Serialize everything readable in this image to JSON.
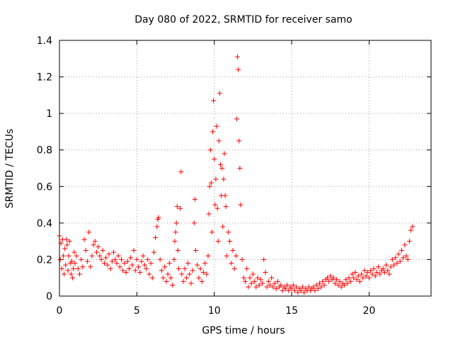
{
  "chart_data": {
    "type": "scatter",
    "title": "Day 080 of 2022, SRMTID for receiver samo",
    "xlabel": "GPS time / hours",
    "ylabel": "SRMTID / TECUs",
    "xlim": [
      0,
      24
    ],
    "ylim": [
      0,
      1.4
    ],
    "x_ticks": [
      0,
      5,
      10,
      15,
      20
    ],
    "x_tick_labels": [
      "0",
      "5",
      "10",
      "15",
      "20"
    ],
    "y_ticks": [
      0,
      0.2,
      0.4,
      0.6,
      0.8,
      1.0,
      1.2,
      1.4
    ],
    "y_tick_labels": [
      "0",
      "0.2",
      "0.4",
      "0.6",
      "0.8",
      "1",
      "1.2",
      "1.4"
    ],
    "grid": true,
    "marker": "+",
    "series": [
      {
        "name": "SRMTID",
        "color": "#ff0000",
        "points": [
          [
            0.0,
            0.33
          ],
          [
            0.05,
            0.2
          ],
          [
            0.1,
            0.29
          ],
          [
            0.15,
            0.15
          ],
          [
            0.2,
            0.31
          ],
          [
            0.25,
            0.22
          ],
          [
            0.3,
            0.12
          ],
          [
            0.35,
            0.26
          ],
          [
            0.4,
            0.17
          ],
          [
            0.45,
            0.31
          ],
          [
            0.5,
            0.28
          ],
          [
            0.55,
            0.14
          ],
          [
            0.6,
            0.22
          ],
          [
            0.65,
            0.3
          ],
          [
            0.7,
            0.18
          ],
          [
            0.75,
            0.12
          ],
          [
            0.8,
            0.19
          ],
          [
            0.85,
            0.1
          ],
          [
            0.9,
            0.15
          ],
          [
            0.95,
            0.24
          ],
          [
            1.0,
            0.18
          ],
          [
            1.1,
            0.22
          ],
          [
            1.2,
            0.15
          ],
          [
            1.3,
            0.12
          ],
          [
            1.4,
            0.2
          ],
          [
            1.5,
            0.16
          ],
          [
            1.6,
            0.31
          ],
          [
            1.7,
            0.25
          ],
          [
            1.8,
            0.19
          ],
          [
            1.9,
            0.35
          ],
          [
            2.0,
            0.16
          ],
          [
            2.1,
            0.22
          ],
          [
            2.2,
            0.28
          ],
          [
            2.3,
            0.3
          ],
          [
            2.4,
            0.24
          ],
          [
            2.5,
            0.27
          ],
          [
            2.6,
            0.22
          ],
          [
            2.7,
            0.2
          ],
          [
            2.8,
            0.25
          ],
          [
            2.9,
            0.18
          ],
          [
            3.0,
            0.21
          ],
          [
            3.1,
            0.17
          ],
          [
            3.2,
            0.23
          ],
          [
            3.3,
            0.15
          ],
          [
            3.4,
            0.19
          ],
          [
            3.5,
            0.24
          ],
          [
            3.6,
            0.2
          ],
          [
            3.7,
            0.18
          ],
          [
            3.8,
            0.22
          ],
          [
            3.9,
            0.16
          ],
          [
            4.0,
            0.2
          ],
          [
            4.1,
            0.14
          ],
          [
            4.2,
            0.18
          ],
          [
            4.3,
            0.13
          ],
          [
            4.4,
            0.19
          ],
          [
            4.5,
            0.15
          ],
          [
            4.6,
            0.21
          ],
          [
            4.7,
            0.17
          ],
          [
            4.8,
            0.25
          ],
          [
            4.9,
            0.14
          ],
          [
            5.0,
            0.2
          ],
          [
            5.1,
            0.16
          ],
          [
            5.2,
            0.13
          ],
          [
            5.3,
            0.19
          ],
          [
            5.4,
            0.22
          ],
          [
            5.5,
            0.17
          ],
          [
            5.6,
            0.15
          ],
          [
            5.7,
            0.2
          ],
          [
            5.8,
            0.12
          ],
          [
            5.9,
            0.18
          ],
          [
            6.0,
            0.1
          ],
          [
            6.1,
            0.24
          ],
          [
            6.2,
            0.32
          ],
          [
            6.3,
            0.38
          ],
          [
            6.35,
            0.42
          ],
          [
            6.4,
            0.43
          ],
          [
            6.5,
            0.2
          ],
          [
            6.6,
            0.14
          ],
          [
            6.7,
            0.1
          ],
          [
            6.8,
            0.16
          ],
          [
            6.9,
            0.08
          ],
          [
            7.0,
            0.12
          ],
          [
            7.1,
            0.18
          ],
          [
            7.2,
            0.1
          ],
          [
            7.3,
            0.06
          ],
          [
            7.4,
            0.2
          ],
          [
            7.45,
            0.3
          ],
          [
            7.5,
            0.35
          ],
          [
            7.55,
            0.4
          ],
          [
            7.6,
            0.49
          ],
          [
            7.65,
            0.25
          ],
          [
            7.7,
            0.15
          ],
          [
            7.8,
            0.48
          ],
          [
            7.85,
            0.68
          ],
          [
            7.9,
            0.12
          ],
          [
            8.0,
            0.08
          ],
          [
            8.1,
            0.15
          ],
          [
            8.2,
            0.1
          ],
          [
            8.3,
            0.18
          ],
          [
            8.4,
            0.12
          ],
          [
            8.5,
            0.07
          ],
          [
            8.6,
            0.14
          ],
          [
            8.7,
            0.4
          ],
          [
            8.75,
            0.53
          ],
          [
            8.8,
            0.25
          ],
          [
            8.9,
            0.17
          ],
          [
            9.0,
            0.1
          ],
          [
            9.1,
            0.15
          ],
          [
            9.2,
            0.08
          ],
          [
            9.3,
            0.13
          ],
          [
            9.4,
            0.18
          ],
          [
            9.5,
            0.12
          ],
          [
            9.6,
            0.22
          ],
          [
            9.65,
            0.45
          ],
          [
            9.7,
            0.6
          ],
          [
            9.75,
            0.8
          ],
          [
            9.8,
            0.62
          ],
          [
            9.85,
            0.35
          ],
          [
            9.9,
            0.9
          ],
          [
            9.95,
            1.07
          ],
          [
            10.0,
            0.75
          ],
          [
            10.05,
            0.5
          ],
          [
            10.1,
            0.64
          ],
          [
            10.15,
            0.93
          ],
          [
            10.2,
            0.48
          ],
          [
            10.25,
            0.3
          ],
          [
            10.3,
            0.85
          ],
          [
            10.35,
            1.11
          ],
          [
            10.4,
            0.72
          ],
          [
            10.45,
            0.55
          ],
          [
            10.5,
            0.7
          ],
          [
            10.55,
            0.38
          ],
          [
            10.6,
            0.64
          ],
          [
            10.65,
            0.78
          ],
          [
            10.7,
            0.55
          ],
          [
            10.75,
            0.49
          ],
          [
            10.8,
            0.22
          ],
          [
            10.9,
            0.35
          ],
          [
            11.0,
            0.3
          ],
          [
            11.1,
            0.18
          ],
          [
            11.2,
            0.25
          ],
          [
            11.3,
            0.15
          ],
          [
            11.4,
            0.22
          ],
          [
            11.45,
            0.97
          ],
          [
            11.5,
            1.31
          ],
          [
            11.55,
            1.24
          ],
          [
            11.6,
            0.85
          ],
          [
            11.65,
            0.7
          ],
          [
            11.7,
            0.5
          ],
          [
            11.8,
            0.2
          ],
          [
            11.9,
            0.1
          ],
          [
            12.0,
            0.08
          ],
          [
            12.1,
            0.15
          ],
          [
            12.2,
            0.05
          ],
          [
            12.3,
            0.1
          ],
          [
            12.4,
            0.07
          ],
          [
            12.5,
            0.12
          ],
          [
            12.6,
            0.08
          ],
          [
            12.7,
            0.05
          ],
          [
            12.8,
            0.1
          ],
          [
            12.9,
            0.06
          ],
          [
            13.0,
            0.09
          ],
          [
            13.1,
            0.07
          ],
          [
            13.2,
            0.2
          ],
          [
            13.3,
            0.13
          ],
          [
            13.4,
            0.05
          ],
          [
            13.5,
            0.08
          ],
          [
            13.6,
            0.06
          ],
          [
            13.7,
            0.1
          ],
          [
            13.8,
            0.05
          ],
          [
            13.9,
            0.07
          ],
          [
            14.0,
            0.04
          ],
          [
            14.1,
            0.08
          ],
          [
            14.2,
            0.05
          ],
          [
            14.3,
            0.06
          ],
          [
            14.4,
            0.03
          ],
          [
            14.5,
            0.05
          ],
          [
            14.6,
            0.04
          ],
          [
            14.7,
            0.06
          ],
          [
            14.8,
            0.03
          ],
          [
            14.9,
            0.05
          ],
          [
            15.0,
            0.04
          ],
          [
            15.1,
            0.06
          ],
          [
            15.2,
            0.03
          ],
          [
            15.3,
            0.05
          ],
          [
            15.4,
            0.02
          ],
          [
            15.5,
            0.04
          ],
          [
            15.6,
            0.03
          ],
          [
            15.7,
            0.05
          ],
          [
            15.8,
            0.02
          ],
          [
            15.9,
            0.04
          ],
          [
            16.0,
            0.03
          ],
          [
            16.1,
            0.05
          ],
          [
            16.2,
            0.03
          ],
          [
            16.3,
            0.04
          ],
          [
            16.4,
            0.05
          ],
          [
            16.5,
            0.03
          ],
          [
            16.6,
            0.06
          ],
          [
            16.7,
            0.04
          ],
          [
            16.8,
            0.07
          ],
          [
            16.9,
            0.05
          ],
          [
            17.0,
            0.08
          ],
          [
            17.1,
            0.06
          ],
          [
            17.2,
            0.09
          ],
          [
            17.3,
            0.1
          ],
          [
            17.4,
            0.08
          ],
          [
            17.5,
            0.11
          ],
          [
            17.6,
            0.09
          ],
          [
            17.7,
            0.1
          ],
          [
            17.8,
            0.07
          ],
          [
            17.9,
            0.09
          ],
          [
            18.0,
            0.06
          ],
          [
            18.1,
            0.08
          ],
          [
            18.2,
            0.05
          ],
          [
            18.3,
            0.07
          ],
          [
            18.4,
            0.06
          ],
          [
            18.5,
            0.09
          ],
          [
            18.6,
            0.07
          ],
          [
            18.7,
            0.1
          ],
          [
            18.8,
            0.08
          ],
          [
            18.9,
            0.12
          ],
          [
            19.0,
            0.1
          ],
          [
            19.1,
            0.13
          ],
          [
            19.2,
            0.09
          ],
          [
            19.3,
            0.11
          ],
          [
            19.4,
            0.08
          ],
          [
            19.5,
            0.12
          ],
          [
            19.6,
            0.1
          ],
          [
            19.7,
            0.14
          ],
          [
            19.8,
            0.11
          ],
          [
            19.9,
            0.13
          ],
          [
            20.0,
            0.1
          ],
          [
            20.1,
            0.14
          ],
          [
            20.2,
            0.12
          ],
          [
            20.3,
            0.15
          ],
          [
            20.4,
            0.11
          ],
          [
            20.5,
            0.13
          ],
          [
            20.6,
            0.16
          ],
          [
            20.7,
            0.12
          ],
          [
            20.8,
            0.14
          ],
          [
            20.9,
            0.15
          ],
          [
            21.0,
            0.13
          ],
          [
            21.1,
            0.17
          ],
          [
            21.2,
            0.14
          ],
          [
            21.3,
            0.12
          ],
          [
            21.4,
            0.16
          ],
          [
            21.5,
            0.2
          ],
          [
            21.6,
            0.17
          ],
          [
            21.7,
            0.21
          ],
          [
            21.8,
            0.18
          ],
          [
            21.9,
            0.23
          ],
          [
            22.0,
            0.19
          ],
          [
            22.1,
            0.25
          ],
          [
            22.2,
            0.21
          ],
          [
            22.3,
            0.28
          ],
          [
            22.4,
            0.22
          ],
          [
            22.5,
            0.2
          ],
          [
            22.6,
            0.3
          ],
          [
            22.7,
            0.36
          ],
          [
            22.8,
            0.38
          ]
        ]
      }
    ]
  }
}
